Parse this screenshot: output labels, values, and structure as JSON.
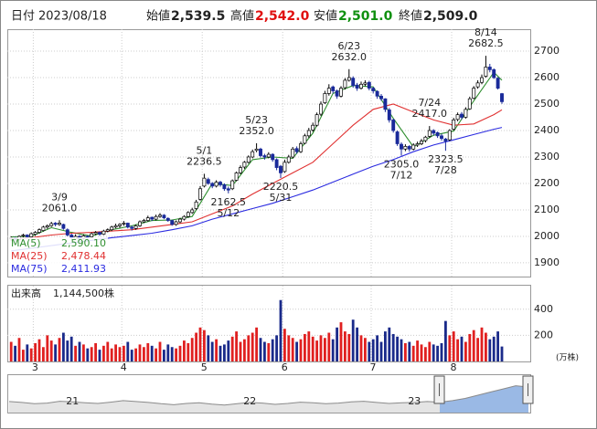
{
  "header": {
    "date_label": "日付",
    "date": "2023/08/18",
    "open_label": "始値",
    "open": "2,539.5",
    "high_label": "高値",
    "high": "2,542.0",
    "low_label": "安値",
    "low": "2,501.0",
    "close_label": "終値",
    "close": "2,509.0"
  },
  "chart_data": {
    "type": "candlestick",
    "categories": [
      null,
      null,
      null,
      null,
      null,
      null,
      "3",
      null,
      null,
      null,
      null,
      null,
      null,
      null,
      null,
      null,
      null,
      null,
      null,
      null,
      null,
      null,
      null,
      null,
      null,
      null,
      null,
      null,
      "4",
      null,
      null,
      null,
      null,
      null,
      null,
      null,
      null,
      null,
      null,
      null,
      null,
      null,
      null,
      null,
      null,
      null,
      null,
      null,
      "5",
      null,
      null,
      null,
      null,
      null,
      null,
      null,
      null,
      null,
      null,
      null,
      null,
      null,
      null,
      null,
      null,
      null,
      null,
      null,
      "6",
      null,
      null,
      null,
      null,
      null,
      null,
      null,
      null,
      null,
      null,
      null,
      null,
      null,
      null,
      null,
      null,
      null,
      null,
      null,
      null,
      null,
      "7",
      null,
      null,
      null,
      null,
      null,
      null,
      null,
      null,
      null,
      null,
      null,
      null,
      null,
      null,
      null,
      null,
      null,
      null,
      null,
      "8",
      null,
      null,
      null,
      null,
      null,
      null,
      null,
      null,
      null,
      null,
      null,
      null
    ],
    "candles": [
      [
        1990,
        2000,
        1982,
        1995
      ],
      [
        1995,
        1998,
        1980,
        1988
      ],
      [
        1988,
        2004,
        1985,
        2000
      ],
      [
        2002,
        2010,
        1995,
        2005
      ],
      [
        2005,
        2008,
        1992,
        1998
      ],
      [
        1998,
        2015,
        1995,
        2010
      ],
      [
        2008,
        2020,
        2002,
        2015
      ],
      [
        2015,
        2030,
        2010,
        2025
      ],
      [
        2022,
        2040,
        2018,
        2035
      ],
      [
        2035,
        2045,
        2028,
        2040
      ],
      [
        2040,
        2055,
        2036,
        2048
      ],
      [
        2050,
        2054,
        2038,
        2045
      ],
      [
        2045,
        2061,
        2040,
        2050
      ],
      [
        2045,
        2048,
        2025,
        2030
      ],
      [
        2025,
        2030,
        2000,
        2005
      ],
      [
        2005,
        2010,
        1985,
        1995
      ],
      [
        1990,
        2008,
        1988,
        2000
      ],
      [
        2000,
        2005,
        1982,
        1990
      ],
      [
        1992,
        2008,
        1988,
        2002
      ],
      [
        2000,
        2004,
        1988,
        1995
      ],
      [
        1998,
        2015,
        1995,
        2010
      ],
      [
        2010,
        2020,
        2005,
        2015
      ],
      [
        2015,
        2018,
        2002,
        2008
      ],
      [
        2008,
        2025,
        2005,
        2020
      ],
      [
        2020,
        2030,
        2015,
        2025
      ],
      [
        2025,
        2040,
        2020,
        2035
      ],
      [
        2035,
        2048,
        2030,
        2040
      ],
      [
        2040,
        2050,
        2032,
        2045
      ],
      [
        2048,
        2058,
        2040,
        2050
      ],
      [
        2050,
        2052,
        2030,
        2035
      ],
      [
        2035,
        2040,
        2022,
        2030
      ],
      [
        2030,
        2045,
        2025,
        2040
      ],
      [
        2040,
        2060,
        2036,
        2055
      ],
      [
        2055,
        2066,
        2050,
        2060
      ],
      [
        2060,
        2078,
        2055,
        2070
      ],
      [
        2072,
        2075,
        2058,
        2065
      ],
      [
        2065,
        2082,
        2060,
        2075
      ],
      [
        2075,
        2088,
        2070,
        2080
      ],
      [
        2080,
        2084,
        2065,
        2070
      ],
      [
        2068,
        2072,
        2055,
        2060
      ],
      [
        2060,
        2063,
        2040,
        2045
      ],
      [
        2045,
        2060,
        2040,
        2055
      ],
      [
        2055,
        2070,
        2050,
        2065
      ],
      [
        2065,
        2080,
        2060,
        2075
      ],
      [
        2075,
        2095,
        2070,
        2090
      ],
      [
        2090,
        2108,
        2085,
        2100
      ],
      [
        2105,
        2138,
        2100,
        2130
      ],
      [
        2140,
        2190,
        2135,
        2180
      ],
      [
        2190,
        2236.5,
        2185,
        2220
      ],
      [
        2215,
        2222,
        2195,
        2200
      ],
      [
        2200,
        2205,
        2182,
        2190
      ],
      [
        2190,
        2212,
        2185,
        2205
      ],
      [
        2205,
        2210,
        2188,
        2195
      ],
      [
        2195,
        2200,
        2172,
        2180
      ],
      [
        2180,
        2188,
        2162.5,
        2175
      ],
      [
        2180,
        2215,
        2175,
        2210
      ],
      [
        2212,
        2245,
        2208,
        2240
      ],
      [
        2240,
        2268,
        2235,
        2260
      ],
      [
        2262,
        2285,
        2255,
        2280
      ],
      [
        2280,
        2306,
        2275,
        2300
      ],
      [
        2300,
        2328,
        2295,
        2320
      ],
      [
        2325,
        2352,
        2318,
        2330
      ],
      [
        2330,
        2335,
        2298,
        2305
      ],
      [
        2305,
        2312,
        2290,
        2300
      ],
      [
        2300,
        2318,
        2295,
        2310
      ],
      [
        2310,
        2314,
        2282,
        2290
      ],
      [
        2290,
        2295,
        2250,
        2260
      ],
      [
        2265,
        2270,
        2220.5,
        2240
      ],
      [
        2245,
        2290,
        2240,
        2280
      ],
      [
        2280,
        2308,
        2275,
        2300
      ],
      [
        2300,
        2338,
        2295,
        2330
      ],
      [
        2332,
        2340,
        2312,
        2320
      ],
      [
        2320,
        2358,
        2315,
        2350
      ],
      [
        2352,
        2388,
        2348,
        2380
      ],
      [
        2380,
        2410,
        2372,
        2400
      ],
      [
        2402,
        2430,
        2395,
        2420
      ],
      [
        2420,
        2468,
        2415,
        2460
      ],
      [
        2462,
        2510,
        2455,
        2500
      ],
      [
        2505,
        2550,
        2500,
        2540
      ],
      [
        2540,
        2575,
        2532,
        2560
      ],
      [
        2565,
        2570,
        2540,
        2550
      ],
      [
        2550,
        2555,
        2520,
        2530
      ],
      [
        2530,
        2568,
        2525,
        2560
      ],
      [
        2562,
        2598,
        2555,
        2590
      ],
      [
        2590,
        2632,
        2585,
        2600
      ],
      [
        2598,
        2605,
        2562,
        2570
      ],
      [
        2572,
        2580,
        2550,
        2560
      ],
      [
        2560,
        2585,
        2555,
        2575
      ],
      [
        2575,
        2590,
        2568,
        2580
      ],
      [
        2582,
        2588,
        2552,
        2560
      ],
      [
        2560,
        2565,
        2540,
        2550
      ],
      [
        2548,
        2552,
        2520,
        2530
      ],
      [
        2530,
        2538,
        2512,
        2520
      ],
      [
        2520,
        2522,
        2470,
        2480
      ],
      [
        2478,
        2485,
        2430,
        2440
      ],
      [
        2440,
        2445,
        2392,
        2400
      ],
      [
        2395,
        2400,
        2342,
        2350
      ],
      [
        2348,
        2355,
        2305,
        2330
      ],
      [
        2330,
        2348,
        2322,
        2340
      ],
      [
        2340,
        2345,
        2320,
        2330
      ],
      [
        2330,
        2352,
        2325,
        2345
      ],
      [
        2345,
        2358,
        2338,
        2350
      ],
      [
        2350,
        2368,
        2345,
        2360
      ],
      [
        2362,
        2380,
        2355,
        2375
      ],
      [
        2378,
        2417,
        2372,
        2400
      ],
      [
        2400,
        2405,
        2382,
        2390
      ],
      [
        2392,
        2396,
        2372,
        2380
      ],
      [
        2380,
        2388,
        2362,
        2370
      ],
      [
        2368,
        2372,
        2323.5,
        2360
      ],
      [
        2365,
        2405,
        2360,
        2400
      ],
      [
        2405,
        2448,
        2400,
        2440
      ],
      [
        2442,
        2468,
        2435,
        2460
      ],
      [
        2462,
        2470,
        2442,
        2450
      ],
      [
        2450,
        2488,
        2445,
        2480
      ],
      [
        2482,
        2528,
        2478,
        2520
      ],
      [
        2522,
        2568,
        2518,
        2560
      ],
      [
        2565,
        2590,
        2558,
        2580
      ],
      [
        2582,
        2612,
        2575,
        2600
      ],
      [
        2605,
        2682.5,
        2600,
        2640
      ],
      [
        2640,
        2652,
        2620,
        2630
      ],
      [
        2630,
        2635,
        2595,
        2600
      ],
      [
        2598,
        2602,
        2555,
        2560
      ],
      [
        2539.5,
        2542,
        2501,
        2509
      ]
    ],
    "ylim": [
      1848,
      2783
    ],
    "yticks": [
      1900,
      2000,
      2100,
      2200,
      2300,
      2400,
      2500,
      2600,
      2700
    ],
    "grid": true,
    "up_color": "#ffffff",
    "down_color": "#1a2a9a",
    "ma_series": [
      {
        "name": "MA(5)",
        "color": "#2f8f2f",
        "value_label": "2,590.10",
        "x": [
          0,
          5,
          10,
          15,
          20,
          25,
          30,
          35,
          40,
          45,
          50,
          55,
          60,
          65,
          70,
          75,
          80,
          85,
          90,
          95,
          100,
          105,
          110,
          115,
          120,
          122
        ],
        "values": [
          1998,
          2000,
          2033,
          2015,
          2001,
          2025,
          2040,
          2060,
          2062,
          2075,
          2200,
          2192,
          2290,
          2300,
          2295,
          2390,
          2540,
          2570,
          2565,
          2446,
          2338,
          2382,
          2398,
          2512,
          2620,
          2590.1
        ]
      },
      {
        "name": "MA(25)",
        "color": "#e03030",
        "value_label": "2,478.44",
        "x": [
          0,
          5,
          10,
          15,
          20,
          25,
          30,
          35,
          40,
          45,
          50,
          55,
          60,
          65,
          70,
          75,
          80,
          85,
          90,
          95,
          100,
          105,
          110,
          115,
          120,
          122
        ],
        "values": [
          1990,
          1995,
          2005,
          2012,
          2015,
          2020,
          2025,
          2035,
          2045,
          2055,
          2085,
          2115,
          2160,
          2200,
          2240,
          2280,
          2350,
          2420,
          2480,
          2500,
          2470,
          2440,
          2420,
          2425,
          2460,
          2478.44
        ]
      },
      {
        "name": "MA(75)",
        "color": "#2a2ae0",
        "value_label": "2,411.93",
        "x": [
          0,
          5,
          10,
          15,
          20,
          25,
          30,
          35,
          40,
          45,
          50,
          55,
          60,
          65,
          70,
          75,
          80,
          85,
          90,
          95,
          100,
          105,
          110,
          115,
          120,
          122
        ],
        "values": [
          1945,
          1955,
          1965,
          1975,
          1985,
          1995,
          2003,
          2012,
          2025,
          2040,
          2065,
          2085,
          2105,
          2125,
          2150,
          2175,
          2205,
          2235,
          2265,
          2290,
          2320,
          2345,
          2365,
          2385,
          2405,
          2411.93
        ]
      }
    ],
    "annotations": [
      {
        "date": "3/9",
        "candle": 12,
        "value": 2061,
        "value_label": "2061.0",
        "position": "above"
      },
      {
        "date": "5/1",
        "candle": 48,
        "value": 2236.5,
        "value_label": "2236.5",
        "position": "above"
      },
      {
        "date": "5/12",
        "candle": 54,
        "value": 2162.5,
        "value_label": "2162.5",
        "position": "below"
      },
      {
        "date": "5/23",
        "candle": 61,
        "value": 2352,
        "value_label": "2352.0",
        "position": "above"
      },
      {
        "date": "5/31",
        "candle": 67,
        "value": 2220.5,
        "value_label": "2220.5",
        "position": "below"
      },
      {
        "date": "6/23",
        "candle": 84,
        "value": 2632,
        "value_label": "2632.0",
        "position": "above"
      },
      {
        "date": "7/12",
        "candle": 97,
        "value": 2305,
        "value_label": "2305.0",
        "position": "below"
      },
      {
        "date": "7/24",
        "candle": 104,
        "value": 2417,
        "value_label": "2417.0",
        "position": "above"
      },
      {
        "date": "7/28",
        "candle": 108,
        "value": 2323.5,
        "value_label": "2323.5",
        "position": "below"
      },
      {
        "date": "8/14",
        "candle": 118,
        "value": 2682.5,
        "value_label": "2682.5",
        "position": "above"
      }
    ],
    "volume": {
      "title": "出来高",
      "last_label": "1,144,500株",
      "unit": "(万株)",
      "ylim": [
        0,
        580
      ],
      "yticks": [
        200,
        400
      ],
      "up_color": "#e02020",
      "down_color": "#1a2a8a",
      "values": [
        150,
        120,
        180,
        90,
        130,
        100,
        140,
        170,
        110,
        200,
        160,
        130,
        180,
        220,
        160,
        190,
        120,
        150,
        130,
        100,
        110,
        140,
        90,
        120,
        150,
        100,
        130,
        110,
        120,
        150,
        90,
        100,
        130,
        110,
        140,
        120,
        100,
        150,
        90,
        130,
        110,
        100,
        120,
        160,
        140,
        180,
        220,
        260,
        240,
        200,
        150,
        170,
        120,
        130,
        160,
        190,
        230,
        150,
        170,
        200,
        220,
        260,
        180,
        150,
        140,
        170,
        200,
        470,
        250,
        200,
        180,
        150,
        170,
        210,
        230,
        190,
        160,
        200,
        180,
        220,
        170,
        260,
        300,
        230,
        210,
        320,
        260,
        200,
        180,
        150,
        170,
        200,
        150,
        230,
        260,
        210,
        190,
        170,
        140,
        150,
        120,
        160,
        130,
        110,
        150,
        130,
        120,
        140,
        310,
        200,
        230,
        170,
        190,
        150,
        210,
        240,
        180,
        260,
        220,
        170,
        190,
        230,
        114.45
      ]
    }
  },
  "navigator": {
    "categories": [
      null,
      null,
      null,
      null,
      null,
      "21",
      null,
      null,
      null,
      null,
      null,
      null,
      null,
      null,
      null,
      null,
      null,
      null,
      null,
      "22",
      null,
      null,
      null,
      null,
      null,
      null,
      null,
      null,
      null,
      null,
      null,
      null,
      "23",
      null,
      null,
      null,
      null,
      null,
      null,
      null,
      null,
      null
    ],
    "values": [
      2050,
      2020,
      1980,
      2000,
      2060,
      2040,
      2010,
      1990,
      2030,
      2080,
      2050,
      2020,
      1980,
      1950,
      1990,
      2010,
      1970,
      1940,
      1980,
      2020,
      2000,
      1960,
      1990,
      2030,
      2010,
      1980,
      2000,
      2040,
      2060,
      2020,
      1990,
      2010,
      2020,
      2050,
      2030,
      2080,
      2150,
      2250,
      2350,
      2450,
      2550,
      2510
    ],
    "ylim": [
      1700,
      2800
    ],
    "color": "#8a8a8a",
    "selection_color": "#7aa6e6"
  }
}
